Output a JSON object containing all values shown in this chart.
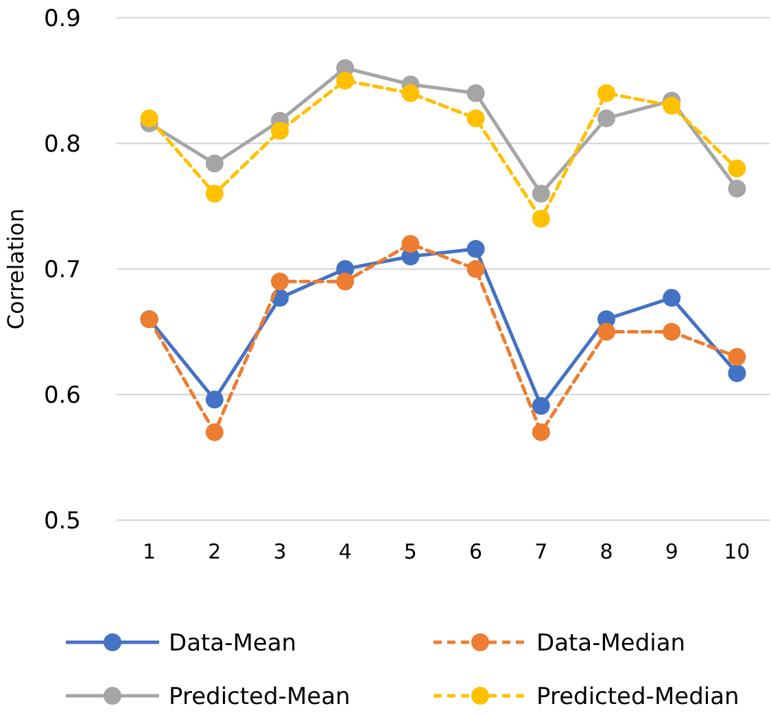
{
  "chart_data": {
    "type": "line",
    "ylabel": "Correlation",
    "categories": [
      "1",
      "2",
      "3",
      "4",
      "5",
      "6",
      "7",
      "8",
      "9",
      "10"
    ],
    "series": [
      {
        "name": "Data-Mean",
        "color": "#4472c4",
        "line_style": "solid",
        "values": [
          0.66,
          0.596,
          0.677,
          0.7,
          0.71,
          0.716,
          0.591,
          0.66,
          0.677,
          0.617
        ]
      },
      {
        "name": "Data-Median",
        "color": "#ed7d31",
        "line_style": "dashed",
        "values": [
          0.66,
          0.57,
          0.69,
          0.69,
          0.72,
          0.7,
          0.57,
          0.65,
          0.65,
          0.63
        ]
      },
      {
        "name": "Predicted-Mean",
        "color": "#a5a5a5",
        "line_style": "solid",
        "values": [
          0.816,
          0.784,
          0.818,
          0.86,
          0.847,
          0.84,
          0.76,
          0.82,
          0.834,
          0.764
        ]
      },
      {
        "name": "Predicted-Median",
        "color": "#ffc000",
        "line_style": "dashed",
        "values": [
          0.82,
          0.76,
          0.81,
          0.85,
          0.84,
          0.82,
          0.74,
          0.84,
          0.83,
          0.78
        ]
      }
    ],
    "ylim": [
      0.5,
      0.9
    ],
    "yticks": [
      0.5,
      0.6,
      0.7,
      0.8,
      0.9
    ],
    "grid": "y",
    "legend": "bottom",
    "marker": "circle"
  }
}
